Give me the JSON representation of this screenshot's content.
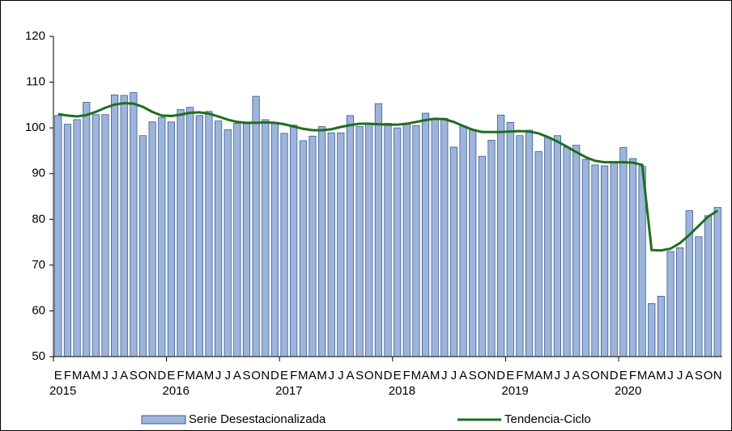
{
  "chart_data": {
    "type": "bar-line",
    "categories": [
      "E",
      "F",
      "M",
      "A",
      "M",
      "J",
      "J",
      "A",
      "S",
      "O",
      "N",
      "D",
      "E",
      "F",
      "M",
      "A",
      "M",
      "J",
      "J",
      "A",
      "S",
      "O",
      "N",
      "D",
      "E",
      "F",
      "M",
      "A",
      "M",
      "J",
      "J",
      "A",
      "S",
      "O",
      "N",
      "D",
      "E",
      "F",
      "M",
      "A",
      "M",
      "J",
      "J",
      "A",
      "S",
      "O",
      "N",
      "D",
      "E",
      "F",
      "M",
      "A",
      "M",
      "J",
      "J",
      "A",
      "S",
      "O",
      "N",
      "D",
      "E",
      "F",
      "M",
      "A",
      "M",
      "J",
      "J",
      "A",
      "S",
      "O",
      "N"
    ],
    "groups": [
      "2015",
      "2016",
      "2017",
      "2018",
      "2019",
      "2020"
    ],
    "series": [
      {
        "name": "Serie Desestacionalizada",
        "type": "bar",
        "color": "#9db5db",
        "edge": "#3a5a8f",
        "values": [
          102.7,
          100.8,
          101.8,
          105.6,
          102.9,
          102.9,
          107.2,
          107.1,
          107.7,
          98.3,
          101.3,
          102.3,
          101.3,
          104.0,
          104.5,
          102.7,
          103.6,
          101.5,
          99.6,
          101.0,
          100.9,
          106.9,
          101.8,
          101.0,
          98.8,
          100.6,
          97.2,
          98.2,
          100.3,
          98.9,
          98.9,
          102.7,
          100.3,
          101.0,
          105.3,
          101.0,
          100.0,
          100.8,
          100.5,
          103.2,
          102.1,
          102.1,
          95.8,
          100.4,
          99.6,
          93.8,
          97.3,
          102.8,
          101.2,
          98.3,
          99.5,
          94.8,
          97.9,
          98.3,
          95.8,
          96.2,
          93.1,
          91.9,
          91.7,
          92.5,
          95.7,
          93.3,
          91.6,
          61.6,
          63.2,
          73.0,
          73.8,
          81.9,
          76.2,
          80.8,
          82.6
        ]
      },
      {
        "name": "Tendencia-Ciclo",
        "type": "line",
        "color": "#1f6e1f",
        "values": [
          103.0,
          102.7,
          102.5,
          102.8,
          103.5,
          104.4,
          105.1,
          105.4,
          105.3,
          104.6,
          103.5,
          102.7,
          102.6,
          102.9,
          103.3,
          103.4,
          103.1,
          102.5,
          101.8,
          101.3,
          101.1,
          101.1,
          101.2,
          101.1,
          100.8,
          100.3,
          99.8,
          99.5,
          99.5,
          99.7,
          100.2,
          100.6,
          100.9,
          100.9,
          100.8,
          100.7,
          100.7,
          100.9,
          101.3,
          101.7,
          102.0,
          101.9,
          101.3,
          100.4,
          99.6,
          99.1,
          99.1,
          99.1,
          99.2,
          99.3,
          99.2,
          98.8,
          98.0,
          97.0,
          95.9,
          94.7,
          93.6,
          92.8,
          92.5,
          92.5,
          92.5,
          92.4,
          91.9,
          73.3,
          73.2,
          73.6,
          74.8,
          76.6,
          78.6,
          80.6,
          81.9
        ]
      }
    ],
    "ylim": [
      50,
      120
    ],
    "yticks": [
      50,
      60,
      70,
      80,
      90,
      100,
      110,
      120
    ],
    "legend": "bottom"
  }
}
